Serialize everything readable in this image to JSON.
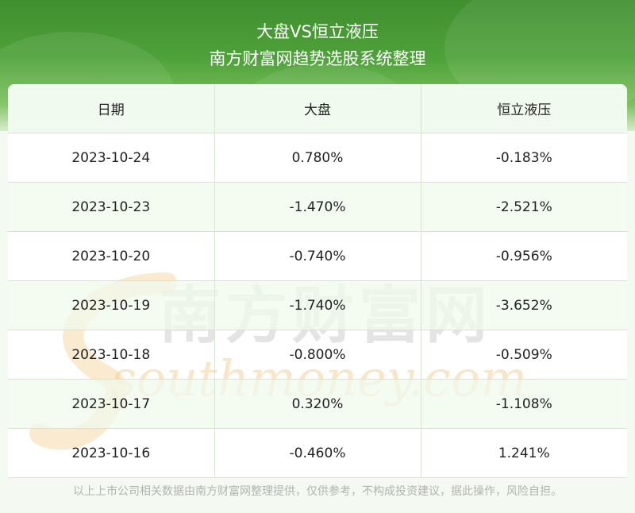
{
  "header": {
    "title": "大盘VS恒立液压",
    "subtitle": "南方财富网趋势选股系统整理"
  },
  "table": {
    "columns": [
      "日期",
      "大盘",
      "恒立液压"
    ],
    "rows": [
      [
        "2023-10-24",
        "0.780%",
        "-0.183%"
      ],
      [
        "2023-10-23",
        "-1.470%",
        "-2.521%"
      ],
      [
        "2023-10-20",
        "-0.740%",
        "-0.956%"
      ],
      [
        "2023-10-19",
        "-1.740%",
        "-3.652%"
      ],
      [
        "2023-10-18",
        "-0.800%",
        "-0.509%"
      ],
      [
        "2023-10-17",
        "0.320%",
        "-1.108%"
      ],
      [
        "2023-10-16",
        "-0.460%",
        "1.241%"
      ]
    ]
  },
  "watermark": {
    "cn": "南方财富网",
    "en": "southmoney.com"
  },
  "footer": {
    "disclaimer": "以上上市公司相关数据由南方财富网整理提供，仅供参考，不构成投资建议，据此操作，风险自担。"
  },
  "colors": {
    "header_green": "#4fa23a",
    "border": "#d9e3d4",
    "watermark_gray": "#c9c9c9",
    "watermark_orange": "#f3c98a"
  }
}
